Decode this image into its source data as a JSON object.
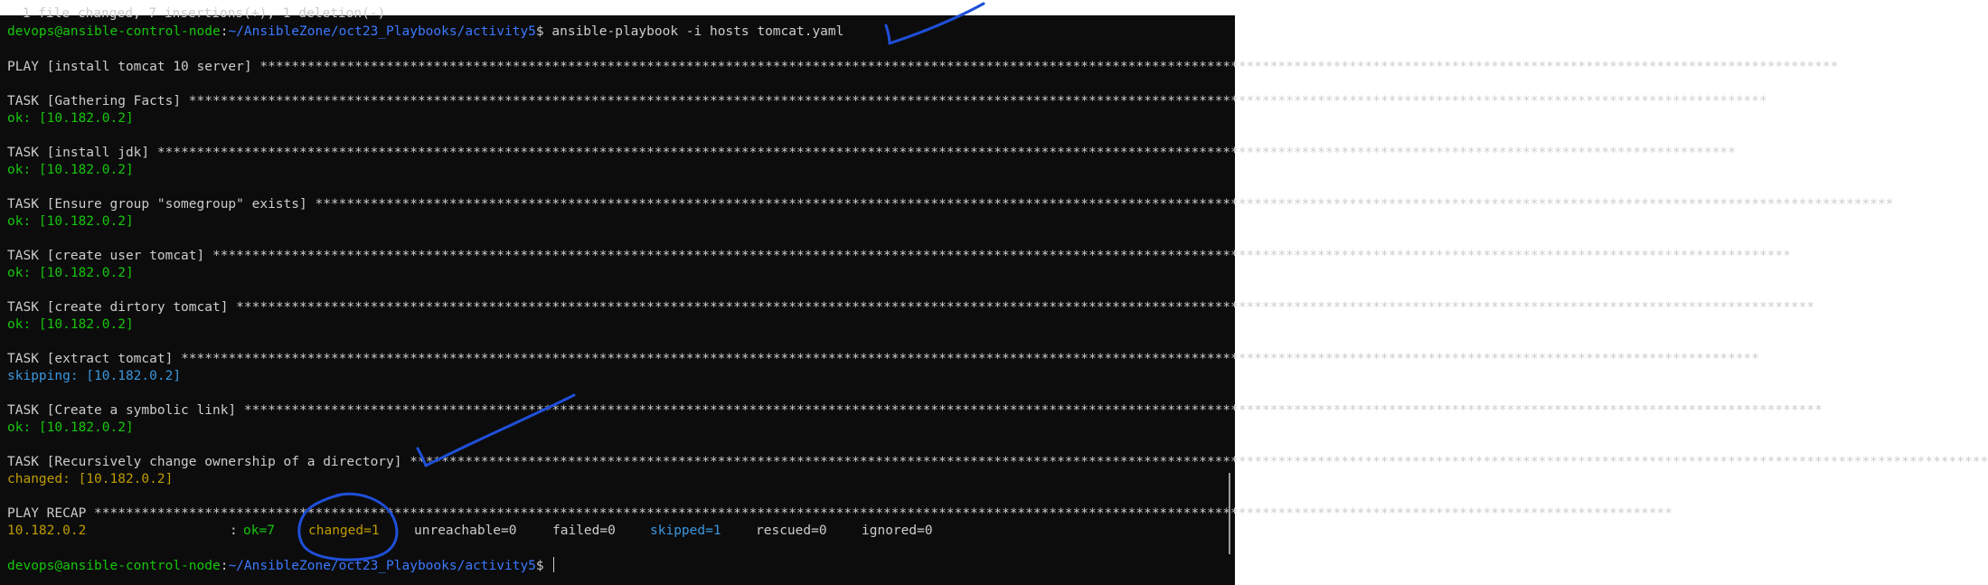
{
  "top_cut_text": " 1 file changed, 7 insertions(+), 1 deletion(-)",
  "prompt": {
    "user_host": "devops@ansible-control-node",
    "path": "~/AnsibleZone/oct23_Playbooks/activity5",
    "symbol": "$",
    "command": "ansible-playbook -i hosts tomcat.yaml"
  },
  "play": {
    "header": "PLAY [install tomcat 10 server]"
  },
  "tasks": [
    {
      "header": "TASK [Gathering Facts]",
      "result": "ok: [10.182.0.2]",
      "status": "ok"
    },
    {
      "header": "TASK [install jdk]",
      "result": "ok: [10.182.0.2]",
      "status": "ok"
    },
    {
      "header": "TASK [Ensure group \"somegroup\" exists]",
      "result": "ok: [10.182.0.2]",
      "status": "ok"
    },
    {
      "header": "TASK [create user tomcat]",
      "result": "ok: [10.182.0.2]",
      "status": "ok"
    },
    {
      "header": "TASK [create dirtory tomcat]",
      "result": "ok: [10.182.0.2]",
      "status": "ok"
    },
    {
      "header": "TASK [extract tomcat]",
      "result": "skipping: [10.182.0.2]",
      "status": "skipping"
    },
    {
      "header": "TASK [Create a symbolic link]",
      "result": "ok: [10.182.0.2]",
      "status": "ok"
    },
    {
      "header": "TASK [Recursively change ownership of a directory]",
      "result": "changed: [10.182.0.2]",
      "status": "changed"
    }
  ],
  "recap": {
    "header": "PLAY RECAP",
    "host": "10.182.0.2",
    "sep": ":",
    "ok": "ok=7",
    "changed": "changed=1",
    "unreachable": "unreachable=0",
    "failed": "failed=0",
    "skipped": "skipped=1",
    "rescued": "rescued=0",
    "ignored": "ignored=0"
  },
  "final_prompt": {
    "user_host": "devops@ansible-control-node",
    "path": "~/AnsibleZone/oct23_Playbooks/activity5",
    "symbol": "$"
  },
  "colors": {
    "background": "#0c0c0c",
    "text": "#cccccc",
    "green": "#16c60c",
    "gold": "#c19c00",
    "path_blue": "#3b78ff",
    "skip_cyan": "#3a96dd",
    "annotation_ink": "#1f4fd8"
  }
}
